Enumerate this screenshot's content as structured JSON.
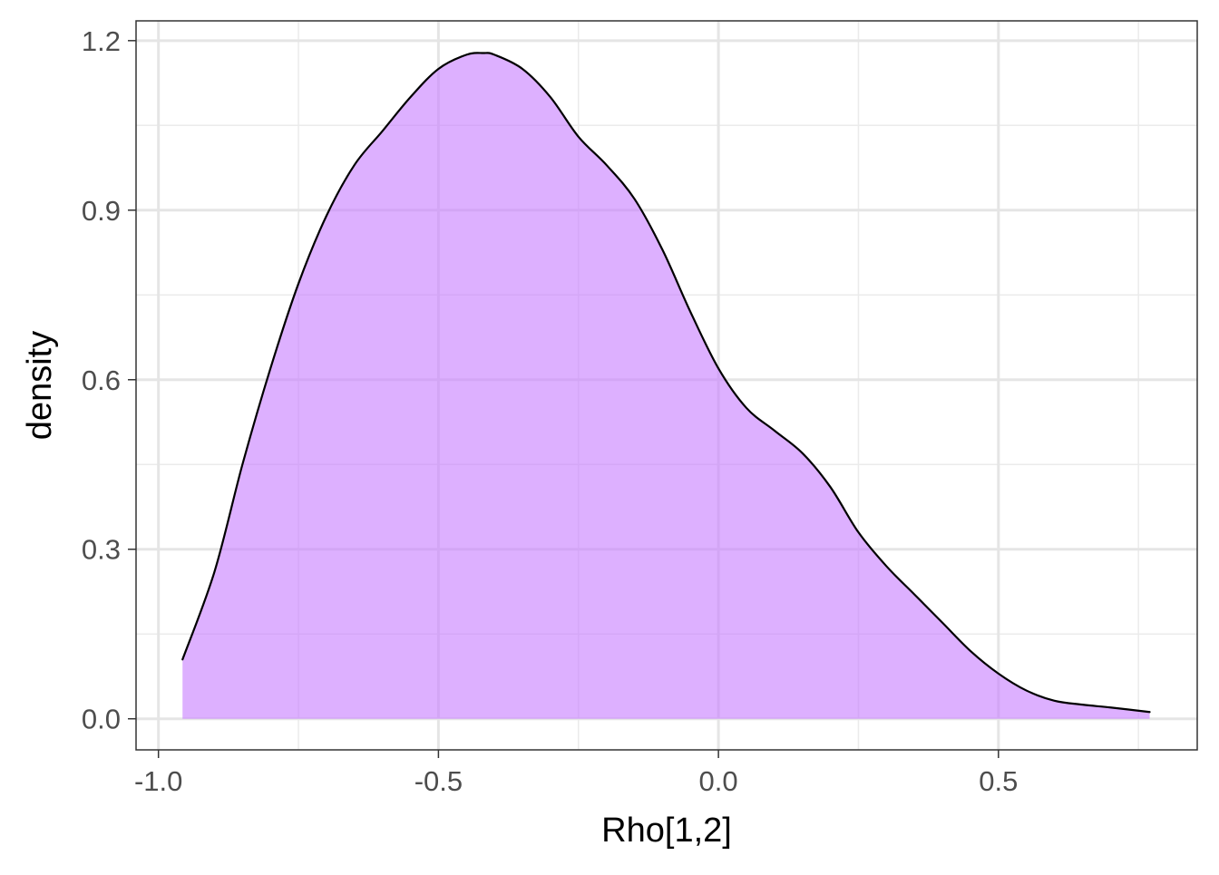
{
  "chart_data": {
    "type": "area",
    "title": "",
    "xlabel": "Rho[1,2]",
    "ylabel": "density",
    "xlim": [
      -1.04,
      0.855
    ],
    "ylim": [
      -0.055,
      1.235
    ],
    "x_ticks": [
      -1.0,
      -0.5,
      0.0,
      0.5
    ],
    "x_tick_labels": [
      "-1.0",
      "-0.5",
      "0.0",
      "0.5"
    ],
    "y_ticks": [
      0.0,
      0.3,
      0.6,
      0.9,
      1.2
    ],
    "y_tick_labels": [
      "0.0",
      "0.3",
      "0.6",
      "0.9",
      "1.2"
    ],
    "x_minor": [
      -0.75,
      -0.25,
      0.25,
      0.75
    ],
    "y_minor": [
      0.15,
      0.45,
      0.75,
      1.05
    ],
    "grid": true,
    "legend": "none",
    "fill_color": "#c77cff",
    "fill_opacity": 0.6,
    "line_color": "#000000",
    "series": [
      {
        "x": [
          -0.957,
          -0.9,
          -0.85,
          -0.8,
          -0.75,
          -0.7,
          -0.65,
          -0.6,
          -0.55,
          -0.5,
          -0.45,
          -0.42,
          -0.4,
          -0.35,
          -0.3,
          -0.25,
          -0.2,
          -0.15,
          -0.1,
          -0.05,
          0.0,
          0.05,
          0.1,
          0.15,
          0.2,
          0.25,
          0.3,
          0.35,
          0.4,
          0.45,
          0.5,
          0.55,
          0.6,
          0.65,
          0.7,
          0.77
        ],
        "y": [
          0.105,
          0.26,
          0.45,
          0.62,
          0.77,
          0.89,
          0.98,
          1.04,
          1.1,
          1.15,
          1.175,
          1.178,
          1.175,
          1.15,
          1.1,
          1.03,
          0.98,
          0.92,
          0.83,
          0.72,
          0.62,
          0.55,
          0.51,
          0.47,
          0.41,
          0.33,
          0.27,
          0.22,
          0.17,
          0.12,
          0.08,
          0.05,
          0.032,
          0.025,
          0.02,
          0.012
        ]
      }
    ]
  }
}
